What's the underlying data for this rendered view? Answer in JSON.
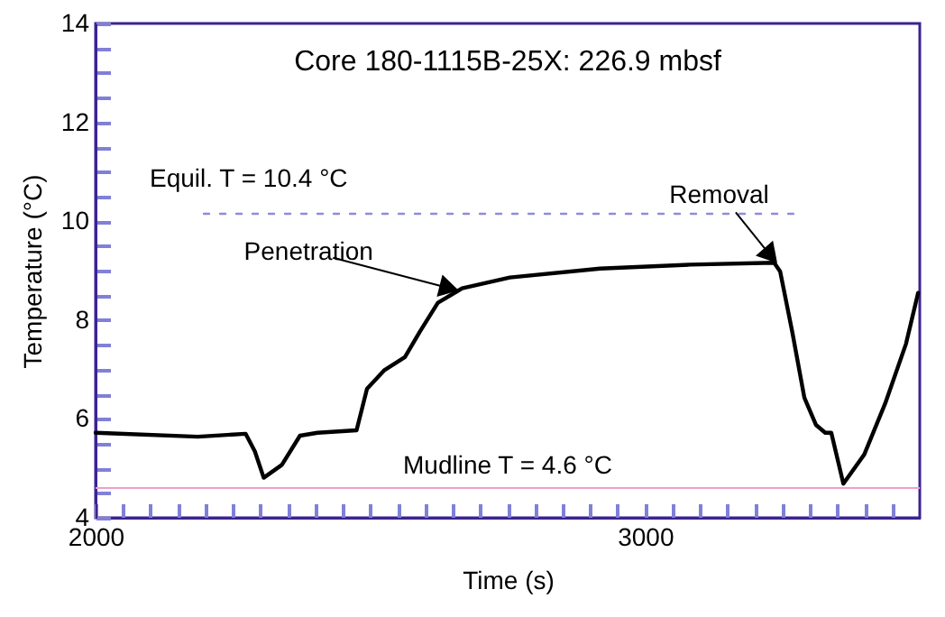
{
  "chart_data": {
    "type": "line",
    "title": "Core 180-1115B-25X: 226.9 mbsf",
    "xlabel": "Time (s)",
    "ylabel": "Temperature (°C)",
    "series": [
      {
        "color": "#000000",
        "x": [
          2000,
          2186,
          2273,
          2290,
          2306,
          2339,
          2372,
          2404,
          2475,
          2494,
          2525,
          2563,
          2590,
          2623,
          2667,
          2754,
          2918,
          3082,
          3235,
          3246,
          3268,
          3290,
          3311,
          3328,
          3339,
          3361,
          3399,
          3437,
          3475,
          3497
        ],
        "values": [
          5.72,
          5.64,
          5.7,
          5.34,
          4.81,
          5.07,
          5.66,
          5.72,
          5.77,
          6.61,
          6.98,
          7.25,
          7.76,
          8.35,
          8.64,
          8.86,
          9.04,
          9.12,
          9.16,
          8.98,
          7.76,
          6.43,
          5.88,
          5.72,
          5.72,
          4.69,
          5.28,
          6.31,
          7.52,
          8.55
        ]
      },
      {
        "name": "Equil. T = 10.4 °C",
        "color": "#8c8ce0",
        "line_style": "dashed",
        "x": [
          2197,
          3270
        ],
        "values": [
          10.15,
          10.15
        ]
      }
    ],
    "ref_lines": [
      {
        "axis": "y",
        "value": 4.6,
        "label": "Mudline T = 4.6 °C",
        "color": "#f0a0c8"
      }
    ],
    "annotations": [
      {
        "text": "Penetration",
        "x": 2660,
        "y": 8.6
      },
      {
        "text": "Removal",
        "x": 3240,
        "y": 9.16
      }
    ],
    "xlim": [
      2000,
      3500
    ],
    "ylim": [
      4,
      14
    ],
    "xticks": [
      2000,
      {
        "value": 2050,
        "label": null
      },
      {
        "value": 2100,
        "label": null
      },
      {
        "value": 2150,
        "label": null
      },
      {
        "value": 2200,
        "label": null
      },
      {
        "value": 2250,
        "label": null
      },
      {
        "value": 2300,
        "label": null
      },
      {
        "value": 2350,
        "label": null
      },
      {
        "value": 2400,
        "label": null
      },
      {
        "value": 2450,
        "label": null
      },
      {
        "value": 2500,
        "label": null
      },
      {
        "value": 2550,
        "label": null
      },
      {
        "value": 2600,
        "label": null
      },
      {
        "value": 2650,
        "label": null
      },
      {
        "value": 2700,
        "label": null
      },
      {
        "value": 2750,
        "label": null
      },
      {
        "value": 2800,
        "label": null
      },
      {
        "value": 2850,
        "label": null
      },
      {
        "value": 2900,
        "label": null
      },
      {
        "value": 2950,
        "label": null
      },
      3000,
      {
        "value": 3050,
        "label": null
      },
      {
        "value": 3100,
        "label": null
      },
      {
        "value": 3150,
        "label": null
      },
      {
        "value": 3200,
        "label": null
      },
      {
        "value": 3250,
        "label": null
      },
      {
        "value": 3300,
        "label": null
      },
      {
        "value": 3350,
        "label": null
      },
      {
        "value": 3400,
        "label": null
      },
      {
        "value": 3450,
        "label": null
      }
    ],
    "yticks": [
      4,
      {
        "value": 4.5,
        "label": null
      },
      {
        "value": 5,
        "label": null
      },
      {
        "value": 5.5,
        "label": null
      },
      6,
      {
        "value": 6.5,
        "label": null
      },
      {
        "value": 7,
        "label": null
      },
      {
        "value": 7.5,
        "label": null
      },
      8,
      {
        "value": 8.5,
        "label": null
      },
      {
        "value": 9,
        "label": null
      },
      {
        "value": 9.5,
        "label": null
      },
      10,
      {
        "value": 10.5,
        "label": null
      },
      {
        "value": 11,
        "label": null
      },
      {
        "value": 11.5,
        "label": null
      },
      12,
      {
        "value": 12.5,
        "label": null
      },
      {
        "value": 13,
        "label": null
      },
      {
        "value": 13.5,
        "label": null
      },
      14
    ],
    "grid": false
  }
}
